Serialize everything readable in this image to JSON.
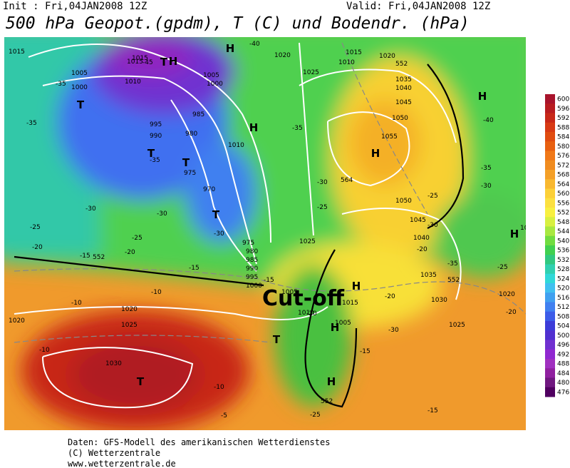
{
  "header": {
    "init": "Init : Fri,04JAN2008 12Z",
    "valid": "Valid: Fri,04JAN2008 12Z",
    "title": "500 hPa Geopot.(gpdm), T (C) und Bodendr. (hPa)"
  },
  "map": {
    "annotation": "Cut-off",
    "labels": [
      "1015",
      "1005",
      "1000",
      "1010",
      "1015",
      "1005",
      "1000",
      "995",
      "990",
      "985",
      "980",
      "975",
      "970",
      "975",
      "980",
      "985",
      "990",
      "995",
      "1000",
      "1020",
      "1025",
      "1035",
      "1040",
      "1045",
      "1050",
      "1055",
      "1050",
      "1045",
      "1040",
      "1035",
      "1030",
      "1025",
      "1020",
      "1015",
      "1010",
      "1005",
      "1010",
      "1015",
      "1020",
      "1025",
      "1030",
      "1020",
      "1005",
      "1010",
      "1015",
      "1020",
      "1025",
      "1020",
      "-35",
      "-35",
      "-30",
      "-25",
      "-20",
      "-15",
      "-10",
      "-10",
      "-10",
      "-45",
      "-40",
      "-35",
      "-30",
      "-30",
      "-25",
      "-20",
      "-15",
      "-15",
      "-20",
      "-25",
      "-30",
      "-35",
      "-40",
      "-35",
      "-30",
      "-25",
      "-20",
      "-15",
      "-20",
      "-25",
      "-30",
      "-35",
      "-30",
      "-25",
      "-20",
      "-15",
      "-10",
      "-5",
      "552",
      "552",
      "552",
      "552",
      "564"
    ],
    "centers": [
      "H",
      "H",
      "T",
      "T",
      "T",
      "T",
      "H",
      "H",
      "H",
      "H",
      "H",
      "T",
      "T",
      "H",
      "H",
      "T"
    ]
  },
  "legend": {
    "levels": [
      600,
      596,
      592,
      588,
      584,
      580,
      576,
      572,
      568,
      564,
      560,
      556,
      552,
      548,
      544,
      540,
      536,
      532,
      528,
      524,
      520,
      516,
      512,
      508,
      504,
      500,
      496,
      492,
      488,
      484,
      480,
      476
    ],
    "colors": [
      "#a8142c",
      "#b81c20",
      "#c82818",
      "#d83a14",
      "#e04c10",
      "#e86010",
      "#f07818",
      "#f08c20",
      "#f4a028",
      "#f8b830",
      "#fcd038",
      "#fce040",
      "#f8f040",
      "#d8f040",
      "#a8e840",
      "#70dc40",
      "#40d050",
      "#30c880",
      "#30d0b0",
      "#30d8d8",
      "#40c0f0",
      "#40a0f0",
      "#4080f0",
      "#3c5ce8",
      "#3c3cd8",
      "#5030d0",
      "#7030d0",
      "#9028d0",
      "#a030c0",
      "#9020a0",
      "#701880",
      "#500060"
    ]
  },
  "footer": [
    "Daten: GFS-Modell des amerikanischen Wetterdienstes",
    "(C) Wetterzentrale",
    "www.wetterzentrale.de"
  ]
}
